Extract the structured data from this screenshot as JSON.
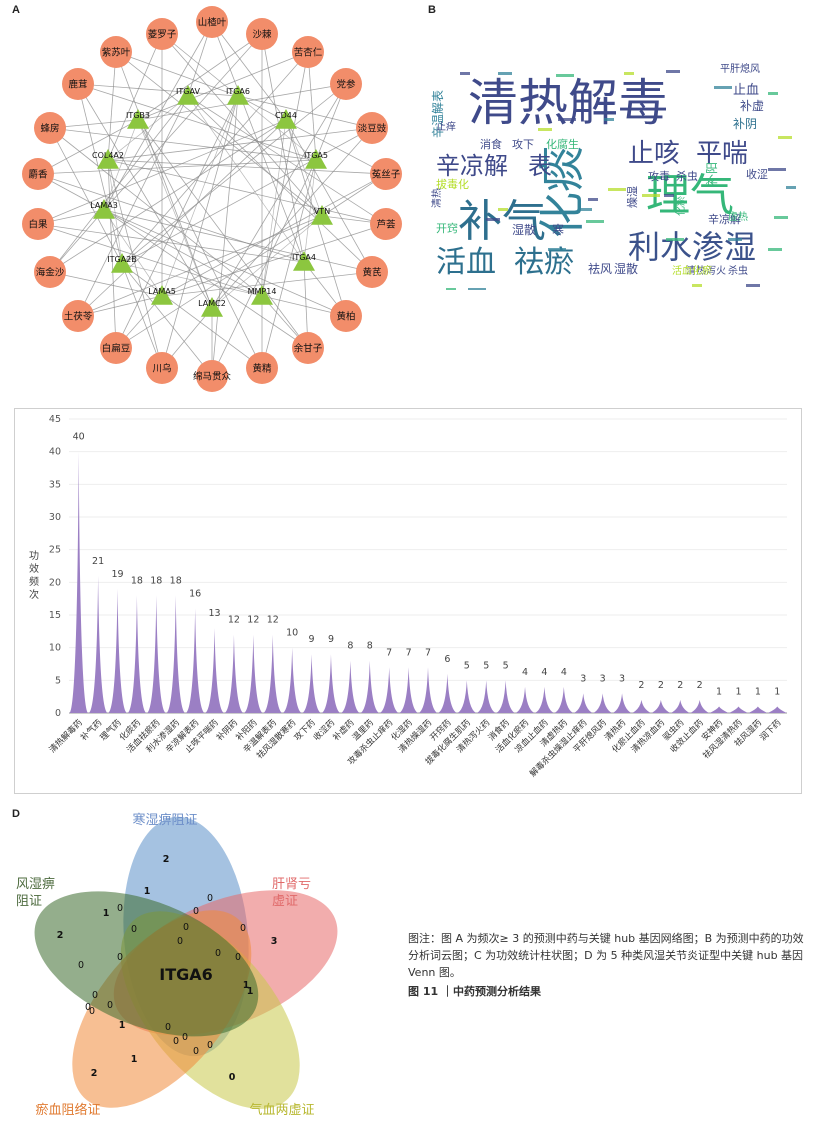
{
  "panels": {
    "a": "A",
    "b": "B",
    "c": "C",
    "d": "D"
  },
  "network": {
    "herbs": [
      "山楂叶",
      "沙棘",
      "苦杏仁",
      "党参",
      "淡豆豉",
      "菟丝子",
      "芦荟",
      "黄芪",
      "黄柏",
      "余甘子",
      "黄精",
      "绵马贯众",
      "川乌",
      "白扁豆",
      "土茯苓",
      "海金沙",
      "白果",
      "麝香",
      "蜂房",
      "鹿茸",
      "紫苏叶",
      "菱罗子"
    ],
    "genes": [
      "ITGAV",
      "ITGA6",
      "ITGB3",
      "CD44",
      "COL4A2",
      "ITGA5",
      "LAMA3",
      "VTN",
      "ITGA2B",
      "ITGA4",
      "LAMA5",
      "LAMC2",
      "MMP14"
    ],
    "herb_color": "#f28d6a",
    "gene_color": "#8cc63f"
  },
  "wordcloud": {
    "words": [
      {
        "t": "清热解毒",
        "c": "#3f4a8a"
      },
      {
        "t": "补气",
        "c": "#2e6f8e"
      },
      {
        "t": "化痰",
        "c": "#33839a"
      },
      {
        "t": "理气",
        "c": "#35b779"
      },
      {
        "t": "止咳",
        "c": "#3f4a8a"
      },
      {
        "t": "平喘",
        "c": "#3f4a8a"
      },
      {
        "t": "辛凉解",
        "c": "#3f4a8a"
      },
      {
        "t": "表",
        "c": "#3f4a8a"
      },
      {
        "t": "活血",
        "c": "#2d708e"
      },
      {
        "t": "祛瘀",
        "c": "#2d708e"
      },
      {
        "t": "利水渗湿",
        "c": "#3b528b"
      },
      {
        "t": "止血",
        "c": "#3f4a8a"
      },
      {
        "t": "补虚",
        "c": "#3f4a8a"
      },
      {
        "t": "补阴",
        "c": "#2d708e"
      },
      {
        "t": "补阳",
        "c": "#35b779"
      },
      {
        "t": "收涩",
        "c": "#3f4a8a"
      },
      {
        "t": "攻毒",
        "c": "#3f4a8a"
      },
      {
        "t": "杀虫",
        "c": "#3f4a8a"
      },
      {
        "t": "辛温解表",
        "c": "#33839a"
      },
      {
        "t": "消食",
        "c": "#3f4a8a"
      },
      {
        "t": "攻下",
        "c": "#3f4a8a"
      },
      {
        "t": "化腐生",
        "c": "#35b779"
      },
      {
        "t": "湿散",
        "c": "#3f4a8a"
      },
      {
        "t": "寒",
        "c": "#3f4a8a"
      },
      {
        "t": "祛风",
        "c": "#3f4a8a"
      },
      {
        "t": "湿散",
        "c": "#3f4a8a"
      },
      {
        "t": "清热泻火",
        "c": "#3f4a8a"
      },
      {
        "t": "杀虫",
        "c": "#3f4a8a"
      },
      {
        "t": "止痒",
        "c": "#3f4a8a"
      },
      {
        "t": "开窍",
        "c": "#35b779"
      },
      {
        "t": "辛凉解",
        "c": "#3f4a8a"
      },
      {
        "t": "虚热",
        "c": "#35b779"
      },
      {
        "t": "化瘀",
        "c": "#35b779"
      },
      {
        "t": "拔毒化",
        "c": "#b5de2b"
      },
      {
        "t": "清热",
        "c": "#3f4a8a"
      },
      {
        "t": "燥湿",
        "c": "#3f4a8a"
      },
      {
        "t": "平肝熄风",
        "c": "#3f4a8a"
      },
      {
        "t": "活血化瘀",
        "c": "#b5de2b"
      }
    ]
  },
  "chart_data": {
    "type": "bar",
    "title": "",
    "xlabel": "",
    "ylabel": "功效频次",
    "ylim": [
      0,
      45
    ],
    "yticks": [
      0,
      5,
      10,
      15,
      20,
      25,
      30,
      35,
      40,
      45
    ],
    "categories": [
      "清热解毒药",
      "补气药",
      "理气药",
      "化痰药",
      "活血祛瘀药",
      "利水渗湿药",
      "辛凉解表药",
      "止咳平喘药",
      "补阴药",
      "补阳药",
      "辛温解表药",
      "祛风湿散寒药",
      "攻下药",
      "收涩药",
      "补虚药",
      "温里药",
      "攻毒杀虫止痒药",
      "化湿药",
      "清热燥湿药",
      "开窍药",
      "拔毒化腐生肌药",
      "清热泻火药",
      "消食药",
      "活血化瘀药",
      "凉血止血药",
      "清虚热药",
      "解毒杀虫燥湿止痒药",
      "平肝熄风药",
      "清热药",
      "化瘀止血药",
      "清热凉血药",
      "驱虫药",
      "收敛止血药",
      "安神药",
      "祛风湿清热药",
      "祛风湿药",
      "润下药"
    ],
    "values": [
      40,
      21,
      19,
      18,
      18,
      18,
      16,
      13,
      12,
      12,
      12,
      10,
      9,
      9,
      8,
      8,
      7,
      7,
      7,
      6,
      5,
      5,
      5,
      4,
      4,
      4,
      3,
      3,
      3,
      2,
      2,
      2,
      2,
      1,
      1,
      1,
      1
    ],
    "color": "#9b7fc4"
  },
  "venn": {
    "sets": [
      {
        "name": "寒湿痹阻证",
        "color": "#5b8fc9",
        "label_color": "#6d8fc9"
      },
      {
        "name": "肝肾亏虚证",
        "color": "#e86a6a",
        "label_color": "#e06a6a"
      },
      {
        "name": "气血两虚证",
        "color": "#c9c94a",
        "label_color": "#b8b832"
      },
      {
        "name": "瘀血阻络证",
        "color": "#f08a3a",
        "label_color": "#e07a30"
      },
      {
        "name": "风湿痹阻证",
        "color": "#3d6b2e",
        "label_color": "#4d6b3e"
      }
    ],
    "center_label": "ITGA6",
    "numbers": [
      "2",
      "3",
      "0",
      "2",
      "2",
      "1",
      "1",
      "0",
      "0",
      "0",
      "0",
      "0",
      "0",
      "0",
      "0",
      "1",
      "1",
      "0",
      "0",
      "0",
      "0",
      "0",
      "0",
      "1",
      "1",
      "0",
      "0",
      "0",
      "0",
      "0",
      "0"
    ]
  },
  "caption": {
    "note": "图注：图 A 为频次≥ 3 的预测中药与关键 hub 基因网络图；B 为预测中药的功效分析词云图；C 为功效统计柱状图；D 为 5 种类风湿关节炎证型中关键 hub 基因 Venn 图。",
    "fig": "图 11 ｜中药预测分析结果"
  }
}
